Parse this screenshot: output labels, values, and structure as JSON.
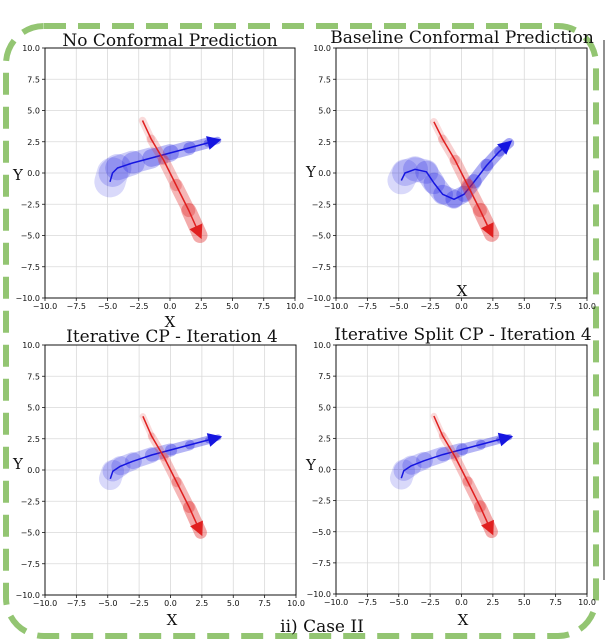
{
  "caption": "ii) Case II",
  "colors": {
    "frame": "#93c572",
    "ego": "#1515e0",
    "other": "#e02020",
    "grid": "#d9d9d9"
  },
  "chart_data": [
    {
      "type": "line",
      "title": "No Conformal Prediction",
      "xlabel": "X",
      "ylabel": "Y",
      "xlim": [
        -10,
        10
      ],
      "ylim": [
        -10,
        10
      ],
      "xticks": [
        "−10.0",
        "−7.5",
        "−5.0",
        "−2.5",
        "0.0",
        "2.5",
        "5.0",
        "7.5",
        "10.0"
      ],
      "yticks": [
        "10.0",
        "7.5",
        "5.0",
        "2.5",
        "0.0",
        "−2.5",
        "−5.0",
        "−7.5",
        "−10.0"
      ],
      "grid": true,
      "series": [
        {
          "values": [
            [
              -4.8,
              -0.7
            ],
            [
              -4.6,
              0.0
            ],
            [
              -4.2,
              0.4
            ],
            [
              -3,
              0.8
            ],
            [
              -1.5,
              1.2
            ],
            [
              0,
              1.6
            ],
            [
              1.5,
              2.0
            ],
            [
              3,
              2.4
            ],
            [
              3.8,
              2.6
            ]
          ],
          "band": [
            2.5,
            0.6
          ]
        },
        {
          "values": [
            [
              -2.2,
              4.2
            ],
            [
              -1.5,
              2.7
            ],
            [
              -0.5,
              1.0
            ],
            [
              0.5,
              -1.0
            ],
            [
              1.5,
              -3.0
            ],
            [
              2.4,
              -5.0
            ]
          ],
          "band": [
            0.6,
            1.2
          ]
        }
      ]
    },
    {
      "type": "line",
      "title": "Baseline Conformal Prediction",
      "xlabel": "X",
      "ylabel": "Y",
      "xlim": [
        -10,
        10
      ],
      "ylim": [
        -10,
        10
      ],
      "xticks": [
        "−10.0",
        "−7.5",
        "−5.0",
        "−2.5",
        "0.0",
        "2.5",
        "5.0",
        "7.5",
        "10.0"
      ],
      "yticks": [
        "10.0",
        "7.5",
        "5.0",
        "2.5",
        "0.0",
        "−2.5",
        "−5.0",
        "−7.5",
        "−10.0"
      ],
      "grid": true,
      "series": [
        {
          "values": [
            [
              -4.8,
              -0.6
            ],
            [
              -4.5,
              0.0
            ],
            [
              -3.7,
              0.3
            ],
            [
              -2.8,
              0.1
            ],
            [
              -2.2,
              -0.8
            ],
            [
              -1.5,
              -1.7
            ],
            [
              -0.6,
              -2.1
            ],
            [
              0.2,
              -1.7
            ],
            [
              1.0,
              -0.7
            ],
            [
              2.0,
              0.6
            ],
            [
              3.0,
              1.7
            ],
            [
              3.8,
              2.4
            ]
          ],
          "band": [
            2.2,
            0.8
          ]
        },
        {
          "values": [
            [
              -2.2,
              4.1
            ],
            [
              -1.5,
              2.7
            ],
            [
              -0.5,
              1.0
            ],
            [
              0.5,
              -1.0
            ],
            [
              1.5,
              -3.0
            ],
            [
              2.4,
              -4.9
            ]
          ],
          "band": [
            0.6,
            1.2
          ]
        }
      ]
    },
    {
      "type": "line",
      "title": "Iterative CP - Iteration 4",
      "xlabel": "X",
      "ylabel": "Y",
      "xlim": [
        -10,
        10
      ],
      "ylim": [
        -10,
        10
      ],
      "xticks": [
        "−10.0",
        "−7.5",
        "−5.0",
        "−2.5",
        "0.0",
        "2.5",
        "5.0",
        "7.5",
        "10.0"
      ],
      "yticks": [
        "10.0",
        "7.5",
        "5.0",
        "2.5",
        "0.0",
        "−2.5",
        "−5.0",
        "−7.5",
        "−10.0"
      ],
      "grid": true,
      "series": [
        {
          "values": [
            [
              -4.8,
              -0.7
            ],
            [
              -4.6,
              -0.1
            ],
            [
              -4.0,
              0.3
            ],
            [
              -3,
              0.7
            ],
            [
              -1.5,
              1.2
            ],
            [
              0,
              1.6
            ],
            [
              1.5,
              2.0
            ],
            [
              3,
              2.4
            ],
            [
              3.8,
              2.6
            ]
          ],
          "band": [
            1.8,
            0.5
          ]
        },
        {
          "values": [
            [
              -2.2,
              4.3
            ],
            [
              -1.5,
              2.7
            ],
            [
              -0.5,
              1.0
            ],
            [
              0.5,
              -1.0
            ],
            [
              1.5,
              -3.0
            ],
            [
              2.4,
              -5.0
            ]
          ],
          "band": [
            0.5,
            1.0
          ]
        }
      ]
    },
    {
      "type": "line",
      "title": "Iterative Split CP - Iteration 4",
      "xlabel": "X",
      "ylabel": "Y",
      "xlim": [
        -10,
        10
      ],
      "ylim": [
        -10,
        10
      ],
      "xticks": [
        "−10.0",
        "−7.5",
        "−5.0",
        "−2.5",
        "0.0",
        "2.5",
        "5.0",
        "7.5",
        "10.0"
      ],
      "yticks": [
        "10.0",
        "7.5",
        "5.0",
        "2.5",
        "0.0",
        "−2.5",
        "−5.0",
        "−7.5",
        "−10.0"
      ],
      "grid": true,
      "series": [
        {
          "values": [
            [
              -4.8,
              -0.7
            ],
            [
              -4.6,
              -0.1
            ],
            [
              -4.0,
              0.3
            ],
            [
              -3,
              0.7
            ],
            [
              -1.5,
              1.2
            ],
            [
              0,
              1.6
            ],
            [
              1.5,
              2.0
            ],
            [
              3,
              2.4
            ],
            [
              3.8,
              2.6
            ]
          ],
          "band": [
            1.8,
            0.5
          ]
        },
        {
          "values": [
            [
              -2.2,
              4.3
            ],
            [
              -1.5,
              2.7
            ],
            [
              -0.5,
              1.0
            ],
            [
              0.5,
              -1.0
            ],
            [
              1.5,
              -3.0
            ],
            [
              2.4,
              -5.0
            ]
          ],
          "band": [
            0.5,
            1.0
          ]
        }
      ]
    }
  ]
}
